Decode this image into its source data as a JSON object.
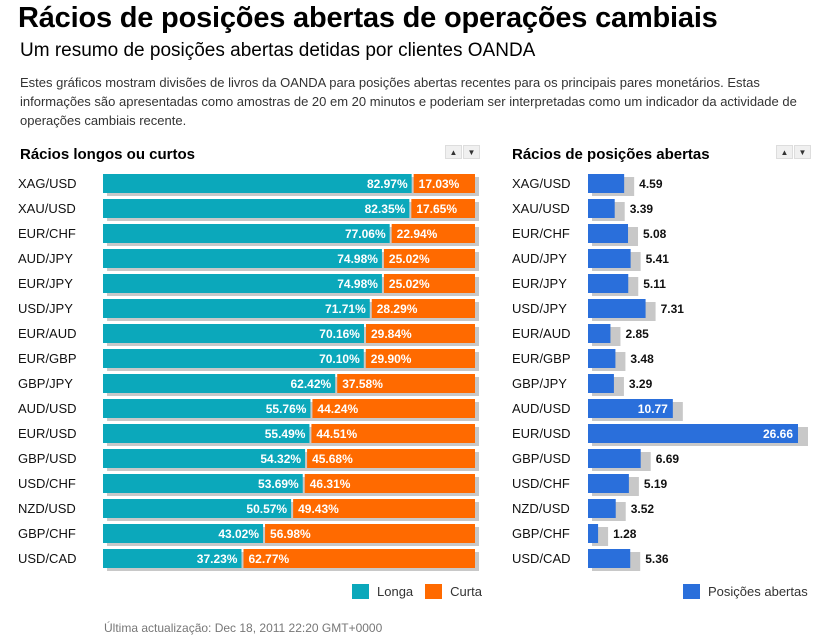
{
  "header": {
    "title": "Rácios de posições abertas de operações cambiais",
    "subtitle": "Um resumo de posições abertas detidas por clientes OANDA",
    "description": "Estes gráficos mostram divisões de livros da OANDA para posições abertas recentes para os principais pares monetários. Estas informações são apresentadas como amostras de 20 em 20 minutos e poderiam ser interpretadas como um indicador da actividade de operações cambiais recente."
  },
  "sort_controls": {
    "up": "▲",
    "down": "▼"
  },
  "colors": {
    "long": "#0ba8bb",
    "short": "#ff6a00",
    "open": "#2a6fdb",
    "shadow": "#c8c8c8"
  },
  "chart_data": [
    {
      "type": "bar",
      "stacked": true,
      "orientation": "horizontal",
      "title": "Rácios longos ou curtos",
      "categories": [
        "XAG/USD",
        "XAU/USD",
        "EUR/CHF",
        "AUD/JPY",
        "EUR/JPY",
        "USD/JPY",
        "EUR/AUD",
        "EUR/GBP",
        "GBP/JPY",
        "AUD/USD",
        "EUR/USD",
        "GBP/USD",
        "USD/CHF",
        "NZD/USD",
        "GBP/CHF",
        "USD/CAD"
      ],
      "series": [
        {
          "name": "Longa",
          "values": [
            82.97,
            82.35,
            77.06,
            74.98,
            74.98,
            71.71,
            70.16,
            70.1,
            62.42,
            55.76,
            55.49,
            54.32,
            53.69,
            50.57,
            43.02,
            37.23
          ],
          "labels": [
            "82.97%",
            "82.35%",
            "77.06%",
            "74.98%",
            "74.98%",
            "71.71%",
            "70.16%",
            "70.10%",
            "62.42%",
            "55.76%",
            "55.49%",
            "54.32%",
            "53.69%",
            "50.57%",
            "43.02%",
            "37.23%"
          ]
        },
        {
          "name": "Curta",
          "values": [
            17.03,
            17.65,
            22.94,
            25.02,
            25.02,
            28.29,
            29.84,
            29.9,
            37.58,
            44.24,
            44.51,
            45.68,
            46.31,
            49.43,
            56.98,
            62.77
          ],
          "labels": [
            "17.03%",
            "17.65%",
            "22.94%",
            "25.02%",
            "25.02%",
            "28.29%",
            "29.84%",
            "29.90%",
            "37.58%",
            "44.24%",
            "44.51%",
            "45.68%",
            "46.31%",
            "49.43%",
            "56.98%",
            "62.77%"
          ]
        }
      ],
      "xlim": [
        0,
        100
      ],
      "legend": [
        "Longa",
        "Curta"
      ],
      "legend_position": "bottom-right"
    },
    {
      "type": "bar",
      "orientation": "horizontal",
      "title": "Rácios de posições abertas",
      "categories": [
        "XAG/USD",
        "XAU/USD",
        "EUR/CHF",
        "AUD/JPY",
        "EUR/JPY",
        "USD/JPY",
        "EUR/AUD",
        "EUR/GBP",
        "GBP/JPY",
        "AUD/USD",
        "EUR/USD",
        "GBP/USD",
        "USD/CHF",
        "NZD/USD",
        "GBP/CHF",
        "USD/CAD"
      ],
      "series": [
        {
          "name": "Posições abertas",
          "values": [
            4.59,
            3.39,
            5.08,
            5.41,
            5.11,
            7.31,
            2.85,
            3.48,
            3.29,
            10.77,
            26.66,
            6.69,
            5.19,
            3.52,
            1.28,
            5.36
          ],
          "labels": [
            "4.59",
            "3.39",
            "5.08",
            "5.41",
            "5.11",
            "7.31",
            "2.85",
            "3.48",
            "3.29",
            "10.77",
            "26.66",
            "6.69",
            "5.19",
            "3.52",
            "1.28",
            "5.36"
          ]
        }
      ],
      "xlim": [
        0,
        26.66
      ],
      "legend": [
        "Posições abertas"
      ],
      "legend_position": "bottom-right"
    }
  ],
  "footer": {
    "last_update": "Última actualização: Dec 18, 2011 22:20 GMT+0000"
  }
}
